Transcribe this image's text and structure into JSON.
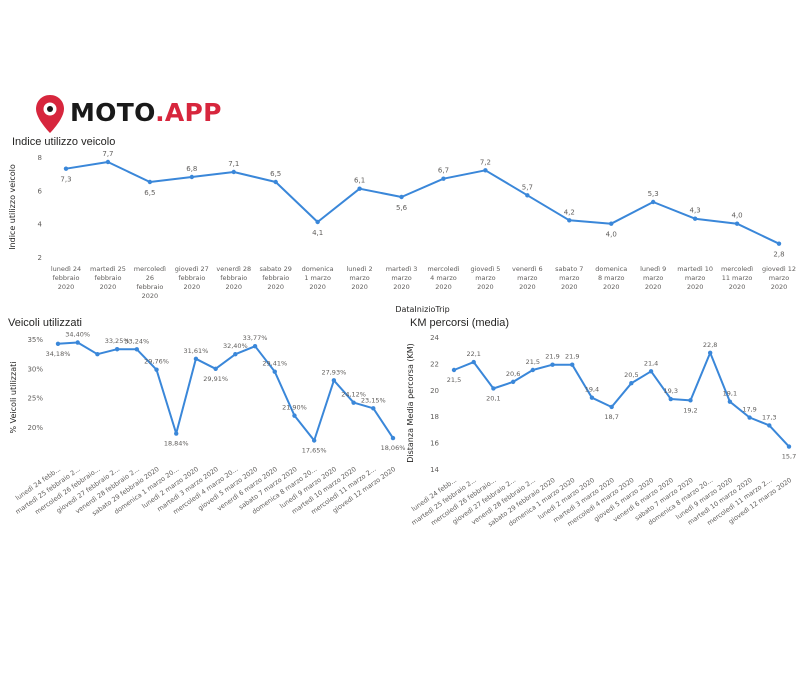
{
  "logo": {
    "prefix": "MOTO",
    "suffix": ".APP",
    "dark_color": "#1a1a1a",
    "accent_color": "#d7263d",
    "icon": "location-pin-icon"
  },
  "line_color": "#3a87d9",
  "chart_data": [
    {
      "type": "line",
      "title": "Indice utilizzo veicolo",
      "xlabel": "DataInizioTrip",
      "ylabel": "Indice utilizzo veicolo",
      "ylim": [
        2,
        8
      ],
      "yticks": [
        "2",
        "4",
        "6",
        "8"
      ],
      "grid": false,
      "categories": [
        [
          "lunedì 24",
          "febbraio",
          "2020"
        ],
        [
          "martedì 25",
          "febbraio",
          "2020"
        ],
        [
          "mercoledì",
          "26",
          "febbraio",
          "2020"
        ],
        [
          "giovedì 27",
          "febbraio",
          "2020"
        ],
        [
          "venerdì 28",
          "febbraio",
          "2020"
        ],
        [
          "sabato 29",
          "febbraio",
          "2020"
        ],
        [
          "domenica",
          "1 marzo",
          "2020"
        ],
        [
          "lunedì 2",
          "marzo",
          "2020"
        ],
        [
          "martedì 3",
          "marzo",
          "2020"
        ],
        [
          "mercoledì",
          "4 marzo",
          "2020"
        ],
        [
          "giovedì 5",
          "marzo",
          "2020"
        ],
        [
          "venerdì 6",
          "marzo",
          "2020"
        ],
        [
          "sabato 7",
          "marzo",
          "2020"
        ],
        [
          "domenica",
          "8 marzo",
          "2020"
        ],
        [
          "lunedì 9",
          "marzo",
          "2020"
        ],
        [
          "martedì 10",
          "marzo",
          "2020"
        ],
        [
          "mercoledì",
          "11 marzo",
          "2020"
        ],
        [
          "giovedì 12",
          "marzo",
          "2020"
        ]
      ],
      "values": [
        7.3,
        7.7,
        6.5,
        6.8,
        7.1,
        6.5,
        4.1,
        6.1,
        5.6,
        6.7,
        7.2,
        5.7,
        4.2,
        4.0,
        5.3,
        4.3,
        4.0,
        2.8
      ],
      "labels": [
        "7,3",
        "7,7",
        "6,5",
        "6,8",
        "7,1",
        "6,5",
        "4,1",
        "6,1",
        "5,6",
        "6,7",
        "7,2",
        "5,7",
        "4,2",
        "4,0",
        "5,3",
        "4,3",
        "4,0",
        "2,8"
      ]
    },
    {
      "type": "line",
      "title": "Veicoli utilizzati",
      "xlabel": "",
      "ylabel": "% Veicoli utilizzati",
      "ylim": [
        15,
        35
      ],
      "yticks": [
        "20%",
        "25%",
        "30%",
        "35%"
      ],
      "grid": false,
      "categories": [
        "lunedì 24 febb...",
        "martedì 25 febbraio 2...",
        "mercoledì 26 febbraio...",
        "giovedì 27 febbraio 2...",
        "venerdì 28 febbraio 2...",
        "sabato 29 febbraio 2020",
        "domenica 1 marzo 20...",
        "lunedì 2 marzo 2020",
        "martedì 3 marzo 2020",
        "mercoledì 4 marzo 20...",
        "giovedì 5 marzo 2020",
        "venerdì 6 marzo 2020",
        "sabato 7 marzo 2020",
        "domenica 8 marzo 20...",
        "lunedì 9 marzo 2020",
        "martedì 10 marzo 2020",
        "mercoledì 11 marzo 2...",
        "giovedì 12 marzo 2020"
      ],
      "values": [
        34.18,
        34.4,
        32.4,
        33.25,
        33.24,
        29.76,
        18.84,
        31.61,
        29.91,
        32.4,
        33.77,
        29.41,
        21.9,
        17.65,
        27.93,
        24.12,
        23.15,
        18.06
      ],
      "labels": [
        "34,18%",
        "34,40%",
        "",
        "33,25%",
        "33,24%",
        "29,76%",
        "18,84%",
        "31,61%",
        "29,91%",
        "32,40%",
        "33,77%",
        "29,41%",
        "21,90%",
        "17,65%",
        "27,93%",
        "24,12%",
        "23,15%",
        "18,06%"
      ]
    },
    {
      "type": "line",
      "title": "KM percorsi (media)",
      "xlabel": "",
      "ylabel": "Distanza Media percorsa (KM)",
      "ylim": [
        14,
        24
      ],
      "yticks": [
        "14",
        "16",
        "18",
        "20",
        "22",
        "24"
      ],
      "grid": false,
      "categories": [
        "lunedì 24 febb...",
        "martedì 25 febbraio 2...",
        "mercoledì 26 febbraio...",
        "giovedì 27 febbraio 2...",
        "venerdì 28 febbraio 2...",
        "sabato 29 febbraio 2020",
        "domenica 1 marzo 2020",
        "lunedì 2 marzo 2020",
        "martedì 3 marzo 2020",
        "mercoledì 4 marzo 2020",
        "giovedì 5 marzo 2020",
        "venerdì 6 marzo 2020",
        "sabato 7 marzo 2020",
        "domenica 8 marzo 20...",
        "lunedì 9 marzo 2020",
        "martedì 10 marzo 2020",
        "mercoledì 11 marzo 2...",
        "giovedì 12 marzo 2020"
      ],
      "values": [
        21.5,
        22.1,
        20.1,
        20.6,
        21.5,
        21.9,
        21.9,
        19.4,
        18.7,
        20.5,
        21.4,
        19.3,
        19.2,
        22.8,
        19.1,
        17.9,
        17.3,
        15.7
      ],
      "labels": [
        "21,5",
        "22,1",
        "20,1",
        "20,6",
        "21,5",
        "21,9",
        "21,9",
        "19,4",
        "18,7",
        "20,5",
        "21,4",
        "19,3",
        "19,2",
        "22,8",
        "19,1",
        "17,9",
        "17,3",
        "15,7"
      ]
    }
  ]
}
